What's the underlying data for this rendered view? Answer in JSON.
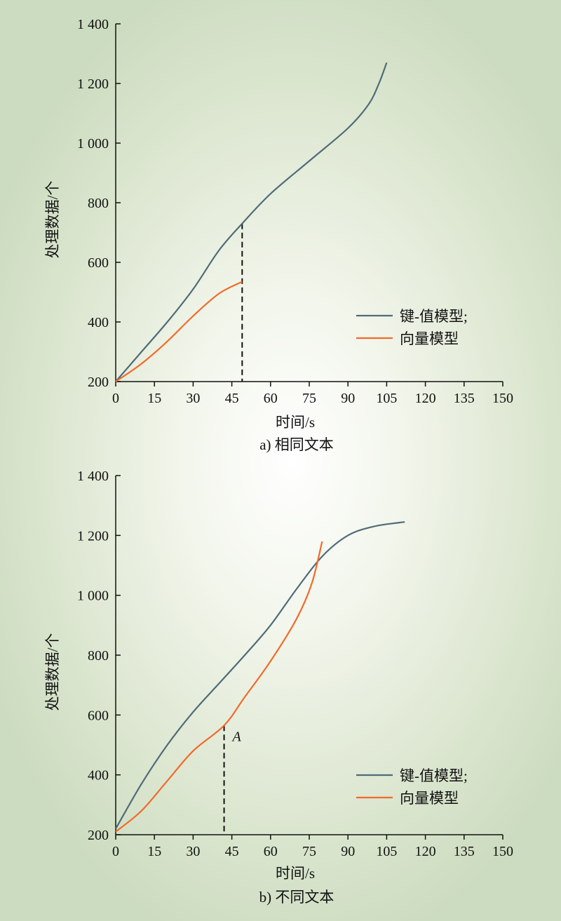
{
  "chart_data": [
    {
      "type": "line",
      "caption": "a) 相同文本",
      "xlabel": "时间/s",
      "ylabel": "处理数据/个",
      "xlim": [
        0,
        150
      ],
      "ylim": [
        200,
        1400
      ],
      "xticks": [
        "0",
        "15",
        "30",
        "45",
        "60",
        "75",
        "90",
        "105",
        "120",
        "135",
        "150"
      ],
      "yticks": [
        "200",
        "400",
        "600",
        "800",
        "1 000",
        "1 200",
        "1 400"
      ],
      "grid": false,
      "legend_position": "right",
      "series": [
        {
          "name": "键-值模型;",
          "color": "#4f6b78",
          "x": [
            0,
            10,
            20,
            30,
            40,
            49,
            60,
            75,
            90,
            98,
            102,
            105
          ],
          "y": [
            200,
            300,
            400,
            510,
            640,
            730,
            830,
            940,
            1050,
            1130,
            1200,
            1270
          ]
        },
        {
          "name": "向量模型",
          "color": "#f26a2b",
          "x": [
            0,
            10,
            20,
            30,
            40,
            49
          ],
          "y": [
            200,
            260,
            335,
            420,
            495,
            535
          ]
        }
      ],
      "annotations": [
        {
          "type": "vline",
          "x": 49,
          "y_from": 200,
          "y_to": 730,
          "style": "dashed"
        }
      ]
    },
    {
      "type": "line",
      "caption": "b) 不同文本",
      "xlabel": "时间/s",
      "ylabel": "处理数据/个",
      "xlim": [
        0,
        150
      ],
      "ylim": [
        200,
        1400
      ],
      "xticks": [
        "0",
        "15",
        "30",
        "45",
        "60",
        "75",
        "90",
        "105",
        "120",
        "135",
        "150"
      ],
      "yticks": [
        "200",
        "400",
        "600",
        "800",
        "1 000",
        "1 200",
        "1 400"
      ],
      "grid": false,
      "legend_position": "bottom-right",
      "series": [
        {
          "name": "键-值模型;",
          "color": "#4f6b78",
          "x": [
            0,
            10,
            20,
            30,
            40,
            50,
            60,
            70,
            80,
            90,
            100,
            110,
            112
          ],
          "y": [
            220,
            370,
            500,
            610,
            705,
            800,
            900,
            1020,
            1130,
            1200,
            1230,
            1243,
            1245
          ]
        },
        {
          "name": "向量模型",
          "color": "#f26a2b",
          "x": [
            0,
            10,
            20,
            30,
            42,
            50,
            60,
            70,
            76,
            80
          ],
          "y": [
            210,
            280,
            380,
            480,
            565,
            660,
            780,
            920,
            1040,
            1180
          ]
        }
      ],
      "annotations": [
        {
          "type": "vline",
          "x": 42,
          "y_from": 200,
          "y_to": 565,
          "style": "dashed",
          "label": "A"
        }
      ]
    }
  ]
}
